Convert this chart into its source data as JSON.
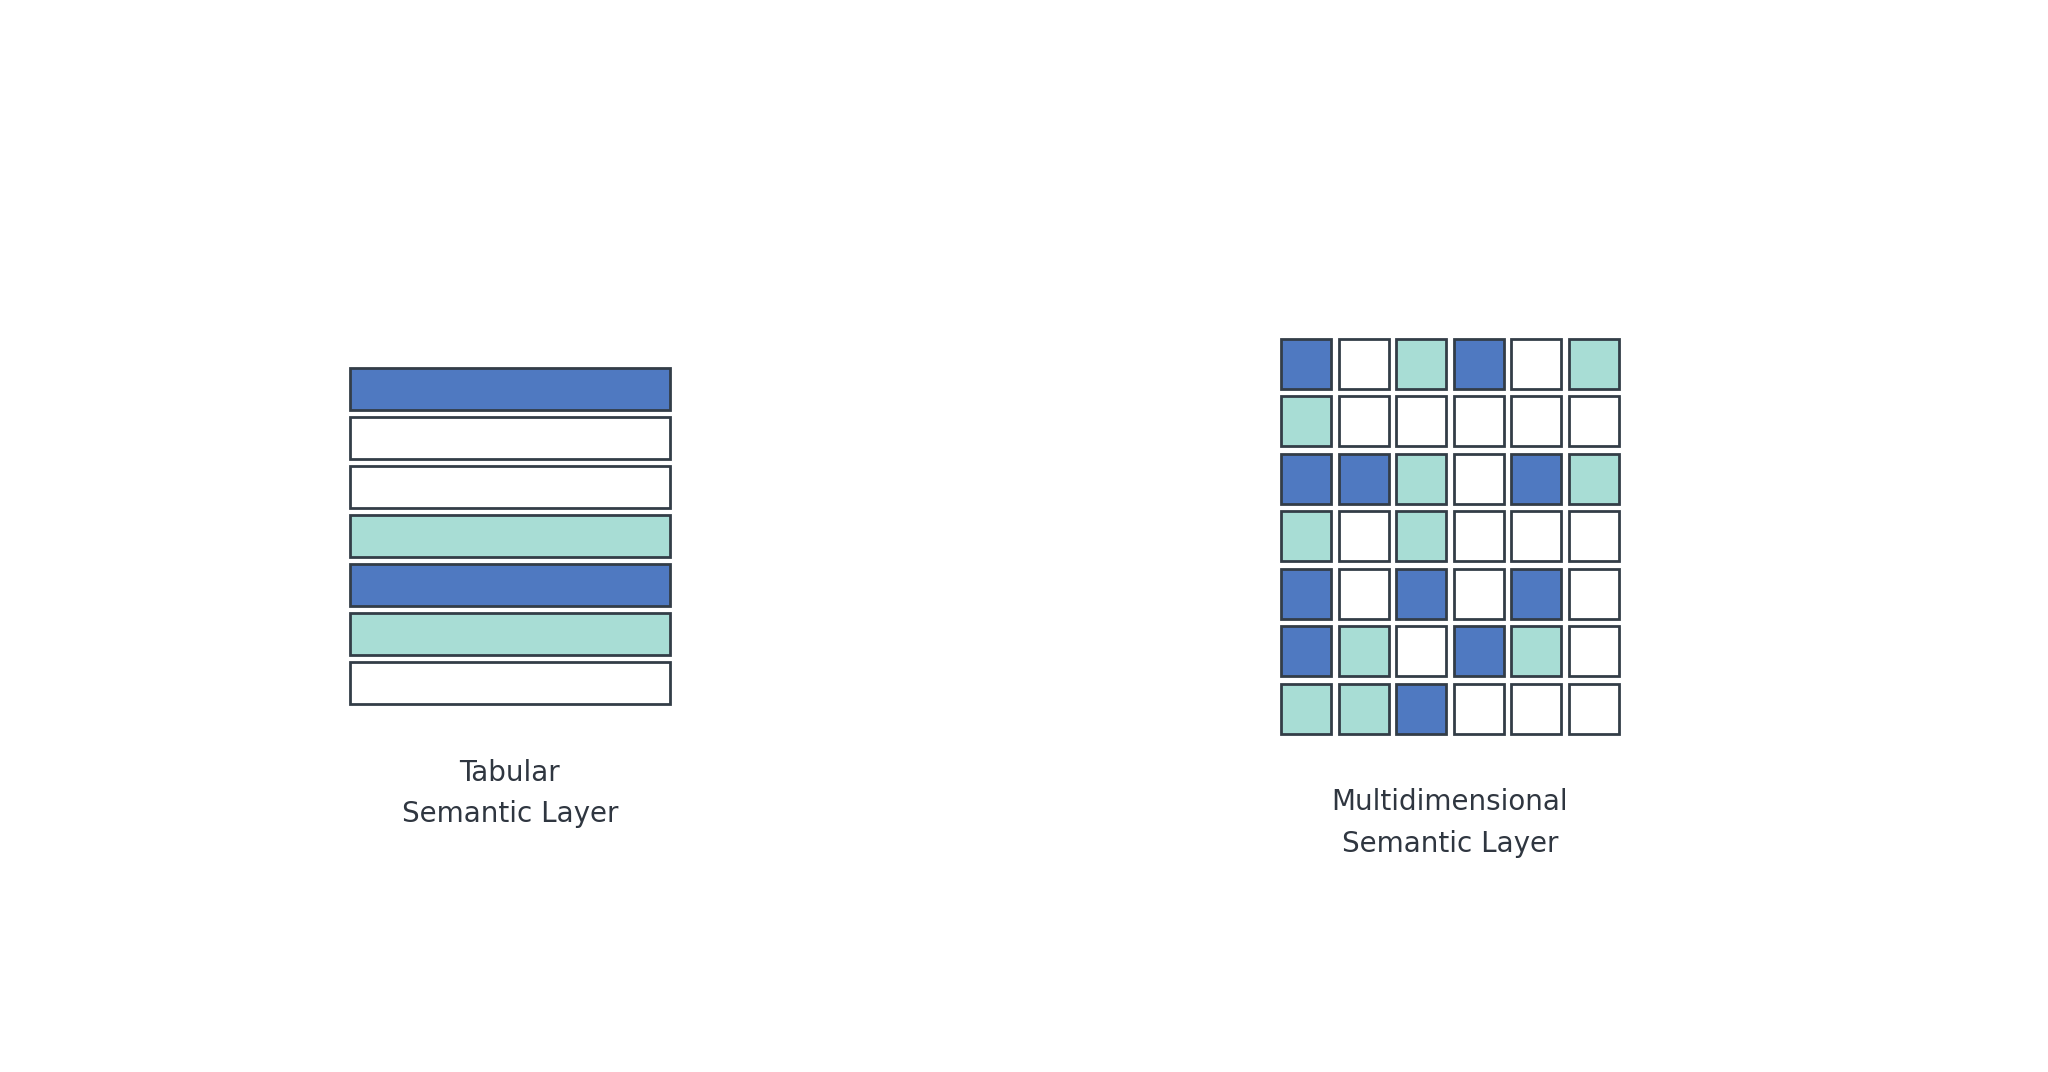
{
  "background_color": "#ffffff",
  "blue": "#4f79c1",
  "teal": "#a8ddd5",
  "white": "#ffffff",
  "border_color": "#333d47",
  "border_lw": 2.0,
  "tabular_colors": [
    "blue",
    "white",
    "white",
    "teal",
    "blue",
    "teal",
    "white"
  ],
  "grid_colors": [
    [
      "blue",
      "white",
      "teal",
      "blue",
      "white",
      "teal"
    ],
    [
      "teal",
      "white",
      "white",
      "white",
      "white",
      "white"
    ],
    [
      "blue",
      "blue",
      "teal",
      "white",
      "blue",
      "teal"
    ],
    [
      "teal",
      "white",
      "teal",
      "white",
      "white",
      "white"
    ],
    [
      "blue",
      "white",
      "blue",
      "white",
      "blue",
      "white"
    ],
    [
      "blue",
      "teal",
      "white",
      "blue",
      "teal",
      "white"
    ],
    [
      "teal",
      "teal",
      "blue",
      "white",
      "white",
      "white"
    ]
  ],
  "tab_label": "Tabular\nSemantic Layer",
  "multi_label": "Multidimensional\nSemantic Layer",
  "label_fontsize": 20,
  "label_color": "#2f3640",
  "fig_width": 20.48,
  "fig_height": 10.72
}
